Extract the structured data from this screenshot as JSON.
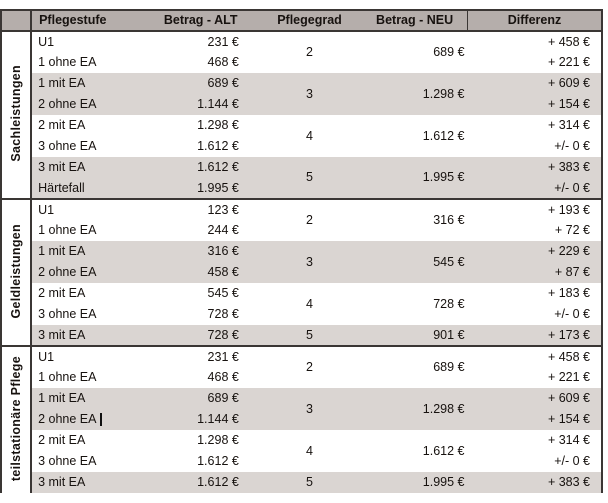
{
  "colors": {
    "header_bg": "#b5aeab",
    "stripe_bg": "#dad5d2",
    "border": "#3a3634",
    "text": "#17120f"
  },
  "table": {
    "headers": {
      "pflegestufe": "Pflegestufe",
      "betrag_alt": "Betrag - ALT",
      "pflegegrad": "Pflegegrad",
      "betrag_neu": "Betrag - NEU",
      "differenz": "Differenz"
    },
    "sections": [
      {
        "label": "Sachleistungen",
        "groups": [
          {
            "grad": "2",
            "neu": "689 €",
            "rows": [
              {
                "stufe": "U1",
                "alt": "231 €",
                "diff": "+ 458 €"
              },
              {
                "stufe": "1 ohne EA",
                "alt": "468 €",
                "diff": "+ 221 €"
              }
            ]
          },
          {
            "grad": "3",
            "neu": "1.298 €",
            "rows": [
              {
                "stufe": "1 mit EA",
                "alt": "689 €",
                "diff": "+ 609 €"
              },
              {
                "stufe": "2 ohne EA",
                "alt": "1.144 €",
                "diff": "+ 154 €"
              }
            ]
          },
          {
            "grad": "4",
            "neu": "1.612 €",
            "rows": [
              {
                "stufe": "2 mit EA",
                "alt": "1.298 €",
                "diff": "+ 314 €"
              },
              {
                "stufe": "3 ohne EA",
                "alt": "1.612 €",
                "diff": "+/- 0 €"
              }
            ]
          },
          {
            "grad": "5",
            "neu": "1.995 €",
            "rows": [
              {
                "stufe": "3 mit EA",
                "alt": "1.612 €",
                "diff": "+ 383 €"
              },
              {
                "stufe": "Härtefall",
                "alt": "1.995 €",
                "diff": "+/- 0 €"
              }
            ]
          }
        ]
      },
      {
        "label": "Geldleistungen",
        "groups": [
          {
            "grad": "2",
            "neu": "316 €",
            "rows": [
              {
                "stufe": "U1",
                "alt": "123 €",
                "diff": "+ 193 €"
              },
              {
                "stufe": "1 ohne EA",
                "alt": "244 €",
                "diff": "+ 72 €"
              }
            ]
          },
          {
            "grad": "3",
            "neu": "545 €",
            "rows": [
              {
                "stufe": "1 mit EA",
                "alt": "316 €",
                "diff": "+ 229 €"
              },
              {
                "stufe": "2 ohne EA",
                "alt": "458 €",
                "diff": "+ 87 €"
              }
            ]
          },
          {
            "grad": "4",
            "neu": "728 €",
            "rows": [
              {
                "stufe": "2 mit EA",
                "alt": "545 €",
                "diff": "+ 183 €"
              },
              {
                "stufe": "3 ohne EA",
                "alt": "728 €",
                "diff": "+/- 0 €"
              }
            ]
          },
          {
            "grad": "5",
            "neu": "901 €",
            "rows": [
              {
                "stufe": "3 mit EA",
                "alt": "728 €",
                "diff": "+ 173 €"
              }
            ]
          }
        ]
      },
      {
        "label": "teilstationäre Pflege",
        "groups": [
          {
            "grad": "2",
            "neu": "689 €",
            "rows": [
              {
                "stufe": "U1",
                "alt": "231 €",
                "diff": "+ 458 €"
              },
              {
                "stufe": "1 ohne EA",
                "alt": "468 €",
                "diff": "+ 221 €"
              }
            ]
          },
          {
            "grad": "3",
            "neu": "1.298 €",
            "rows": [
              {
                "stufe": "1 mit EA",
                "alt": "689 €",
                "diff": "+ 609 €"
              },
              {
                "stufe": "2 ohne EA",
                "alt": "1.144 €",
                "diff": "+ 154 €",
                "cursor": true
              }
            ]
          },
          {
            "grad": "4",
            "neu": "1.612 €",
            "rows": [
              {
                "stufe": "2 mit EA",
                "alt": "1.298 €",
                "diff": "+ 314 €"
              },
              {
                "stufe": "3 ohne EA",
                "alt": "1.612 €",
                "diff": "+/- 0 €"
              }
            ]
          },
          {
            "grad": "5",
            "neu": "1.995 €",
            "rows": [
              {
                "stufe": "3 mit EA",
                "alt": "1.612 €",
                "diff": "+ 383 €"
              }
            ]
          }
        ]
      }
    ]
  }
}
